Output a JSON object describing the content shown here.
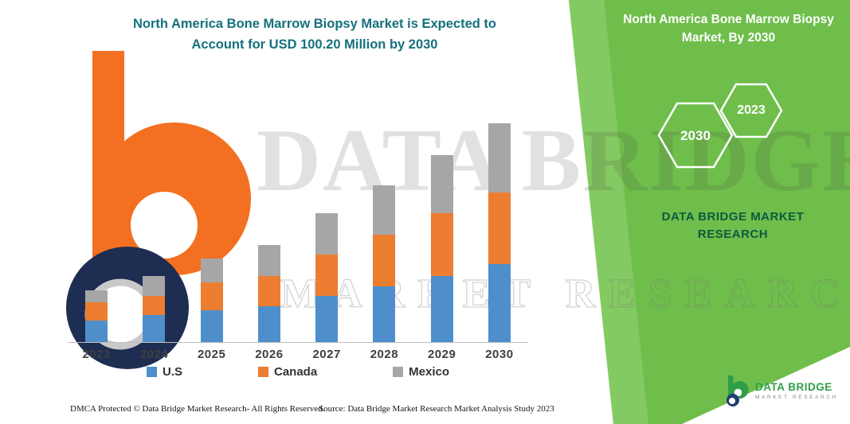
{
  "header": {
    "title_line1": "North America Bone Marrow Biopsy Market is Expected to",
    "title_line2": "Account for USD 100.20 Million by 2030"
  },
  "side_panel": {
    "title": "North America Bone Marrow Biopsy Market, By 2030",
    "hexagon_left": "2030",
    "hexagon_right": "2023",
    "brand_line1": "DATA BRIDGE MARKET",
    "brand_line2": "RESEARCH",
    "panel_color": "#6FBE4B",
    "stripe_color": "#84CA62"
  },
  "watermark": {
    "primary": "DATA BRIDGE",
    "secondary": "MARKET RESEARCH"
  },
  "chart_data": {
    "type": "bar",
    "stacked": true,
    "title": "North America Bone Marrow Biopsy Market is Expected to Account for USD 100.20 Million by 2030",
    "xlabel": "",
    "ylabel": "",
    "unit": "USD Million",
    "ylim": [
      0,
      105
    ],
    "grid": false,
    "legend_position": "bottom",
    "categories": [
      "2023",
      "2024",
      "2025",
      "2026",
      "2027",
      "2028",
      "2029",
      "2030"
    ],
    "series": [
      {
        "name": "U.S",
        "color": "#4E8FCB",
        "values": [
          9.8,
          12.4,
          14.6,
          16.4,
          21.1,
          25.5,
          30.2,
          35.7
        ]
      },
      {
        "name": "Canada",
        "color": "#ED7D31",
        "values": [
          8.4,
          8.8,
          12.8,
          13.9,
          19.0,
          23.7,
          28.8,
          32.8
        ]
      },
      {
        "name": "Mexico",
        "color": "#A6A6A6",
        "values": [
          5.6,
          9.1,
          10.9,
          14.2,
          18.9,
          22.6,
          26.6,
          31.7
        ]
      }
    ],
    "totals": [
      23.8,
      30.3,
      38.3,
      44.5,
      59.0,
      71.8,
      85.6,
      100.2
    ]
  },
  "footer": {
    "dmca": "DMCA Protected © Data Bridge Market Research-  All Rights Reserved.",
    "source": "Source: Data Bridge Market Research  Market Analysis Study 2023"
  },
  "brand_logo": {
    "name": "DATA BRIDGE",
    "tagline": "MARKET RESEARCH"
  }
}
